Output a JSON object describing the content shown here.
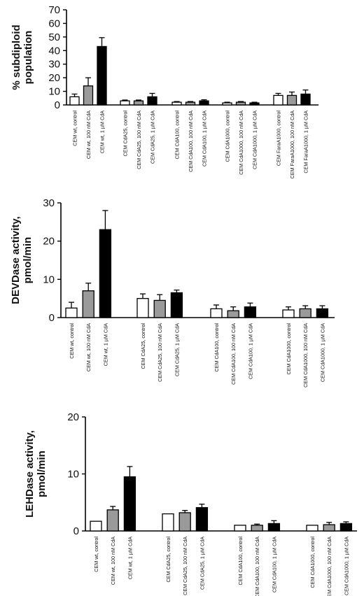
{
  "colors": {
    "control": "#ffffff",
    "mid": "#9a9a9a",
    "high": "#000000",
    "stroke": "#000000"
  },
  "chart_data": [
    {
      "type": "bar",
      "title": "",
      "ylabel": "% subdiploid population",
      "ylim": [
        0,
        70
      ],
      "yticks": [
        0,
        10,
        20,
        30,
        40,
        50,
        60,
        70
      ],
      "grid": false,
      "groups": [
        {
          "bars": [
            {
              "label": "CEM wt, control",
              "value": 6,
              "error": 2,
              "level": "control"
            },
            {
              "label": "CEM wt, 100 nM CdA",
              "value": 14,
              "error": 6,
              "level": "mid"
            },
            {
              "label": "CEM wt, 1 µM CdA",
              "value": 43,
              "error": 6.5,
              "level": "high"
            }
          ]
        },
        {
          "bars": [
            {
              "label": "CEM CdA25, control",
              "value": 3,
              "error": 0.6,
              "level": "control"
            },
            {
              "label": "CEM CdA25, 100 nM CdA",
              "value": 3,
              "error": 0.6,
              "level": "mid"
            },
            {
              "label": "CEM CdA25, 1 µM CdA",
              "value": 6,
              "error": 2.5,
              "level": "high"
            }
          ]
        },
        {
          "bars": [
            {
              "label": "CEM CdA100, control",
              "value": 2,
              "error": 0.5,
              "level": "control"
            },
            {
              "label": "CEM CdA100, 100 nM CdA",
              "value": 2,
              "error": 0.5,
              "level": "mid"
            },
            {
              "label": "CEM CdA100, 1 µM CdA",
              "value": 3,
              "error": 0.8,
              "level": "high"
            }
          ]
        },
        {
          "bars": [
            {
              "label": "CEM CdA1000, control",
              "value": 1.5,
              "error": 0.5,
              "level": "control"
            },
            {
              "label": "CEM CdA1000, 100 nM CdA",
              "value": 2,
              "error": 0.5,
              "level": "mid"
            },
            {
              "label": "CEM CdA1000, 1 µM CdA",
              "value": 1.5,
              "error": 0.5,
              "level": "high"
            }
          ]
        },
        {
          "bars": [
            {
              "label": "CEM FaraA1000, control",
              "value": 7,
              "error": 1.5,
              "level": "control"
            },
            {
              "label": "CEM FaraA1000, 100 nM CdA",
              "value": 7,
              "error": 2.5,
              "level": "mid"
            },
            {
              "label": "CEM FaraA1000, 1 µM CdA",
              "value": 8,
              "error": 3,
              "level": "high"
            }
          ]
        }
      ]
    },
    {
      "type": "bar",
      "title": "",
      "ylabel": "DEVDase activity, pmol/min",
      "ylim": [
        0,
        30
      ],
      "yticks": [
        0,
        10,
        20,
        30
      ],
      "grid": false,
      "groups": [
        {
          "bars": [
            {
              "label": "CEM wt, control",
              "value": 2.5,
              "error": 1.5,
              "level": "control"
            },
            {
              "label": "CEM wt, 100 nM CdA",
              "value": 7,
              "error": 2,
              "level": "mid"
            },
            {
              "label": "CEM wt, 1 µM CdA",
              "value": 23,
              "error": 5,
              "level": "high"
            }
          ]
        },
        {
          "bars": [
            {
              "label": "CEM CdA25, control",
              "value": 5,
              "error": 1.2,
              "level": "control"
            },
            {
              "label": "CEM CdA25, 100 nM CdA",
              "value": 4.5,
              "error": 1.5,
              "level": "mid"
            },
            {
              "label": "CEM CdA25, 1 µM CdA",
              "value": 6.5,
              "error": 0.7,
              "level": "high"
            }
          ]
        },
        {
          "bars": [
            {
              "label": "CEM CdA100, control",
              "value": 2.3,
              "error": 1,
              "level": "control"
            },
            {
              "label": "CEM CdA100, 100 nM CdA",
              "value": 1.8,
              "error": 1,
              "level": "mid"
            },
            {
              "label": "CEM CdA100, 1 µM CdA",
              "value": 2.8,
              "error": 1,
              "level": "high"
            }
          ]
        },
        {
          "bars": [
            {
              "label": "CEM CdA1000, control",
              "value": 2,
              "error": 0.8,
              "level": "control"
            },
            {
              "label": "CEM CdA1000, 100 nM CdA",
              "value": 2.3,
              "error": 0.8,
              "level": "mid"
            },
            {
              "label": "CEM CdA1000, 1 µM CdA",
              "value": 2.3,
              "error": 0.8,
              "level": "high"
            }
          ]
        }
      ]
    },
    {
      "type": "bar",
      "title": "",
      "ylabel": "LEHDase activity, pmol/min",
      "ylim": [
        0,
        20
      ],
      "yticks": [
        0,
        10,
        20
      ],
      "grid": false,
      "groups": [
        {
          "bars": [
            {
              "label": "CEM wt, control",
              "value": 1.7,
              "error": 0,
              "level": "control"
            },
            {
              "label": "CEM wt, 100 nM CdA",
              "value": 3.7,
              "error": 0.6,
              "level": "mid"
            },
            {
              "label": "CEM wt, 1 µM CdA",
              "value": 9.5,
              "error": 1.8,
              "level": "high"
            }
          ]
        },
        {
          "bars": [
            {
              "label": "CEM CdA25, control",
              "value": 3,
              "error": 0,
              "level": "control"
            },
            {
              "label": "CEM CdA25, 100 nM CdA",
              "value": 3.2,
              "error": 0.4,
              "level": "mid"
            },
            {
              "label": "CEM CdA25, 1 µM CdA",
              "value": 4.1,
              "error": 0.6,
              "level": "high"
            }
          ]
        },
        {
          "bars": [
            {
              "label": "CEM CdA100, control",
              "value": 1,
              "error": 0,
              "level": "control"
            },
            {
              "label": "CEM CdA100, 100 nM CdA",
              "value": 1,
              "error": 0.2,
              "level": "mid"
            },
            {
              "label": "CEM CdA100, 1 µM CdA",
              "value": 1.3,
              "error": 0.5,
              "level": "high"
            }
          ]
        },
        {
          "bars": [
            {
              "label": "CEM CdA1000, control",
              "value": 1,
              "error": 0,
              "level": "control"
            },
            {
              "label": "CEM CdA1000, 100 nM CdA",
              "value": 1.1,
              "error": 0.4,
              "level": "mid"
            },
            {
              "label": "CEM CdA1000, 1 µM CdA",
              "value": 1.3,
              "error": 0.3,
              "level": "high"
            }
          ]
        }
      ]
    }
  ]
}
